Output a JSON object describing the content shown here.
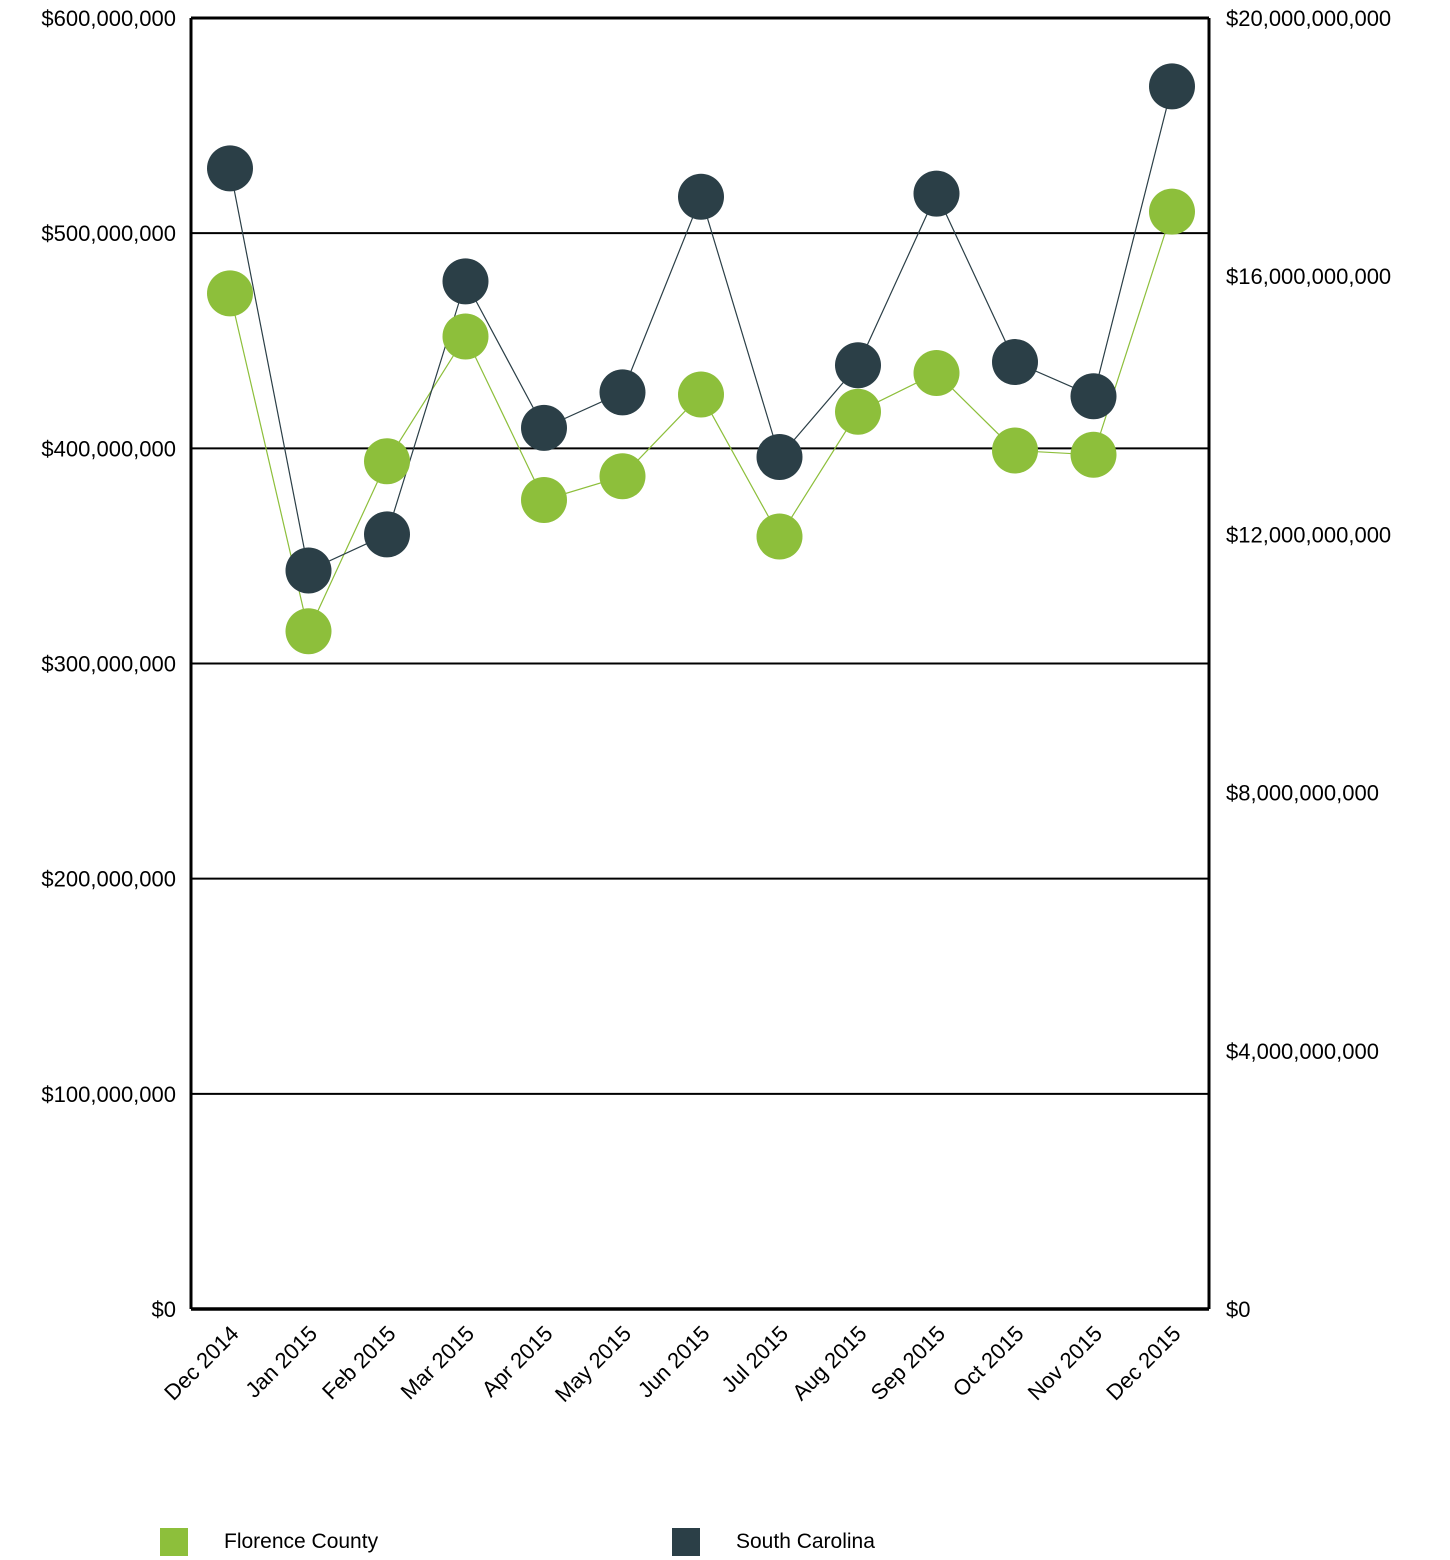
{
  "chart_data": {
    "type": "line",
    "categories": [
      "Dec 2014",
      "Jan 2015",
      "Feb 2015",
      "Mar 2015",
      "Apr 2015",
      "May 2015",
      "Jun 2015",
      "Jul 2015",
      "Aug 2015",
      "Sep 2015",
      "Oct 2015",
      "Nov 2015",
      "Dec 2015"
    ],
    "y_left": {
      "range": [
        0,
        600000000
      ],
      "ticks": [
        0,
        100000000,
        200000000,
        300000000,
        400000000,
        500000000,
        600000000
      ],
      "tick_labels": [
        "$0",
        "$100,000,000",
        "$200,000,000",
        "$300,000,000",
        "$400,000,000",
        "$500,000,000",
        "$600,000,000"
      ]
    },
    "y_right": {
      "range": [
        0,
        20000000000
      ],
      "ticks": [
        0,
        4000000000,
        8000000000,
        12000000000,
        16000000000,
        20000000000
      ],
      "tick_labels": [
        "$0",
        "$4,000,000,000",
        "$8,000,000,000",
        "$12,000,000,000",
        "$16,000,000,000",
        "$20,000,000,000"
      ]
    },
    "grid": true,
    "legend_position": "bottom",
    "series": [
      {
        "name": "Florence County",
        "axis": "left",
        "color": "#8dbf3b",
        "values": [
          472000000,
          315000000,
          394000000,
          452000000,
          376000000,
          387000000,
          425000000,
          359000000,
          417000000,
          435000000,
          399000000,
          397000000,
          510000000
        ]
      },
      {
        "name": "South Carolina",
        "axis": "right",
        "color": "#2b3f47",
        "values": [
          17670000000,
          11440000000,
          12000000000,
          15920000000,
          13650000000,
          14200000000,
          17230000000,
          13200000000,
          14620000000,
          17280000000,
          14670000000,
          14140000000,
          18940000000
        ]
      }
    ]
  }
}
